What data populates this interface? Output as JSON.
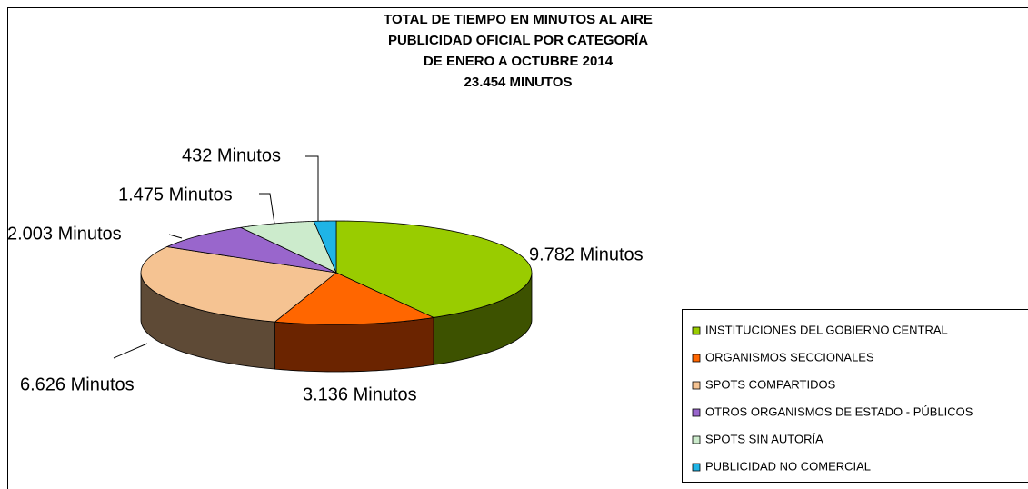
{
  "chart_data": {
    "type": "pie3d",
    "title": [
      "TOTAL DE TIEMPO EN MINUTOS AL AIRE",
      "PUBLICIDAD OFICIAL POR CATEGORÍA",
      "DE ENERO A OCTUBRE 2014",
      "23.454 MINUTOS"
    ],
    "categories": [
      "INSTITUCIONES DEL GOBIERNO CENTRAL",
      "ORGANISMOS SECCIONALES",
      "SPOTS COMPARTIDOS",
      "OTROS ORGANISMOS DE ESTADO - PÚBLICOS",
      "SPOTS SIN AUTORÍA",
      "PUBLICIDAD NO COMERCIAL"
    ],
    "values": [
      9782,
      3136,
      6626,
      2003,
      1475,
      432
    ],
    "value_labels": [
      "9.782 Minutos",
      "3.136 Minutos",
      "6.626 Minutos",
      "2.003 Minutos",
      "1.475 Minutos",
      "432 Minutos"
    ],
    "colors": [
      "#99cc00",
      "#ff6600",
      "#f5c392",
      "#9966cc",
      "#ccebcc",
      "#1fb4e6"
    ],
    "side_colors": [
      "#3d5200",
      "#6b2400",
      "#5e4a36",
      "#3d2a5a",
      "#56665a",
      "#0b4c66"
    ],
    "legend": "right"
  }
}
